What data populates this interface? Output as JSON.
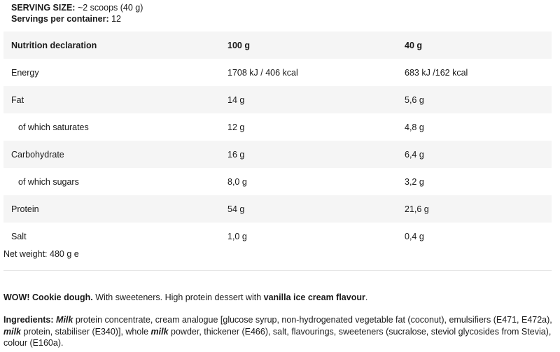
{
  "serving": {
    "size_label": "SERVING SIZE:",
    "size_value": " ~2 scoops (40 g)",
    "per_container_label": "Servings per container:",
    "per_container_value": " 12"
  },
  "table": {
    "headers": [
      "Nutrition declaration",
      "100 g",
      "40 g"
    ],
    "rows": [
      {
        "name": "Energy",
        "per100": "1708 kJ / 406 kcal",
        "per40": "683 kJ /162 kcal"
      },
      {
        "name": "Fat",
        "per100": "14 g",
        "per40": "5,6 g"
      },
      {
        "name": "of which saturates",
        "per100": "12 g",
        "per40": "4,8 g"
      },
      {
        "name": "Carbohydrate",
        "per100": "16 g",
        "per40": "6,4 g"
      },
      {
        "name": "of which sugars",
        "per100": "8,0 g",
        "per40": "3,2 g"
      },
      {
        "name": "Protein",
        "per100": "54 g",
        "per40": "21,6 g"
      },
      {
        "name": "Salt",
        "per100": "1,0 g",
        "per40": "0,4 g"
      }
    ]
  },
  "net_weight": "Net weight: 480 g e",
  "description": {
    "b1": "WOW! Cookie dough.",
    "t1": " With sweeteners. High protein dessert with ",
    "b2": "vanilla ice cream flavour",
    "t2": "."
  },
  "ingredients": {
    "label": "Ingredients:",
    "m1": "Milk",
    "t1": " protein concentrate, cream analogue [glucose syrup, non-hydrogenated vegetable fat (coconut), emulsifiers (E471, E472a), ",
    "m2": "milk",
    "t2": " protein, stabiliser (E340)], whole ",
    "m3": "milk",
    "t3": " powder, thickener (E466), salt, flavourings, sweeteners (sucralose, steviol glycosides from Stevia), colour (E160a)."
  }
}
